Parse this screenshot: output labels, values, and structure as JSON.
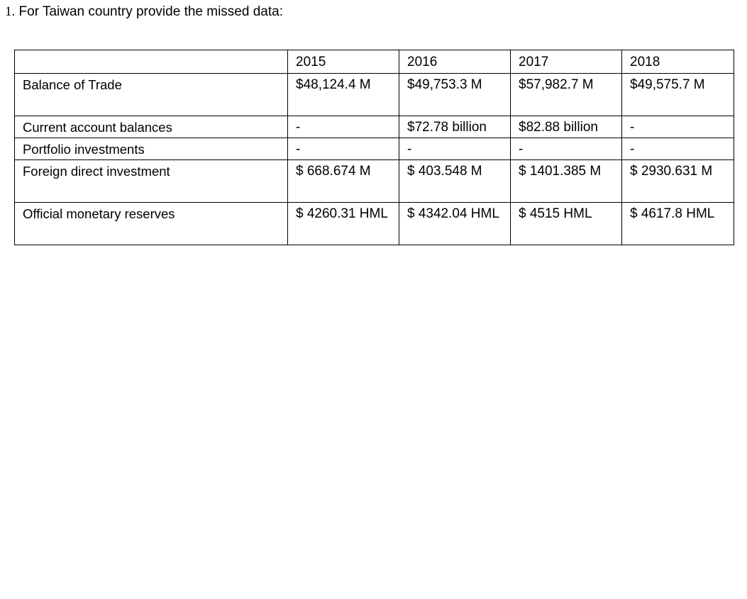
{
  "heading": {
    "number": "1.",
    "text": "For Taiwan country provide the missed data:"
  },
  "table": {
    "years": [
      "2015",
      "2016",
      "2017",
      "2018"
    ],
    "rows": [
      {
        "label": "Balance of Trade",
        "values": [
          "$48,124.4 M",
          "$49,753.3 M",
          "$57,982.7 M",
          "$49,575.7 M"
        ]
      },
      {
        "label": "Current account balances",
        "values": [
          "-",
          "$72.78 billion",
          "$82.88 billion",
          "-"
        ]
      },
      {
        "label": "Portfolio investments",
        "values": [
          "-",
          "-",
          "-",
          "-"
        ]
      },
      {
        "label": "Foreign direct investment",
        "values": [
          "$ 668.674 M",
          "$ 403.548 M",
          "$ 1401.385 M",
          "$ 2930.631 M"
        ]
      },
      {
        "label": "Official monetary reserves",
        "values": [
          "$ 4260.31 HML",
          "$ 4342.04 HML",
          "$ 4515 HML",
          "$ 4617.8 HML"
        ]
      }
    ]
  }
}
